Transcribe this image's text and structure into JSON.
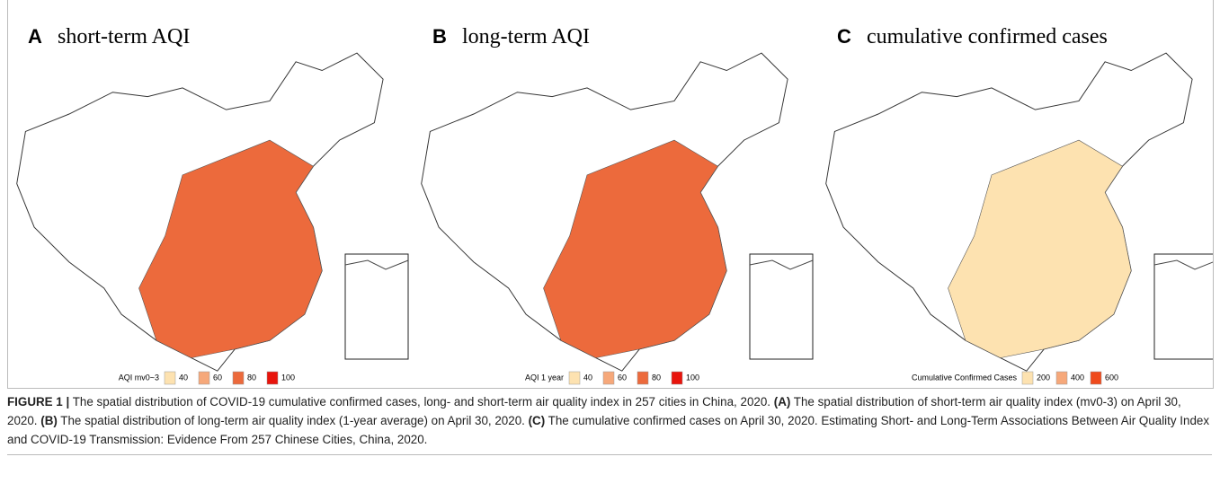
{
  "panels": [
    {
      "letter": "A",
      "title": "short-term AQI",
      "legend_title": "AQI mv0~3",
      "legend_labels": [
        40,
        60,
        80,
        100
      ],
      "legend_colors": [
        "#fde2b0",
        "#f6a87a",
        "#ec6a3c",
        "#e8140c"
      ]
    },
    {
      "letter": "B",
      "title": "long-term AQI",
      "legend_title": "AQI 1 year",
      "legend_labels": [
        40,
        60,
        80,
        100
      ],
      "legend_colors": [
        "#fde2b0",
        "#f6a87a",
        "#ec6a3c",
        "#e8140c"
      ]
    },
    {
      "letter": "C",
      "title": "cumulative confirmed cases",
      "legend_title": "Cumulative Confirmed Cases",
      "legend_labels": [
        200,
        400,
        600
      ],
      "legend_colors": [
        "#fde2b0",
        "#f6a87a",
        "#ef4a1c"
      ]
    }
  ],
  "caption": {
    "segments": [
      "FIGURE 1 |",
      " The spatial distribution of COVID-19 cumulative confirmed cases, long- and short-term air quality index in 257 cities in China, 2020. ",
      "(A)",
      " The spatial distribution of short-term air quality index (mv0-3) on April 30, 2020. ",
      "(B)",
      " The spatial distribution of long-term air quality index (1-year average) on April 30, 2020. ",
      "(C)",
      " The cumulative confirmed cases on April 30, 2020. Estimating Short- and Long-Term Associations Between Air Quality Index and COVID-19 Transmission: Evidence From 257 Chinese Cities, China, 2020."
    ]
  }
}
